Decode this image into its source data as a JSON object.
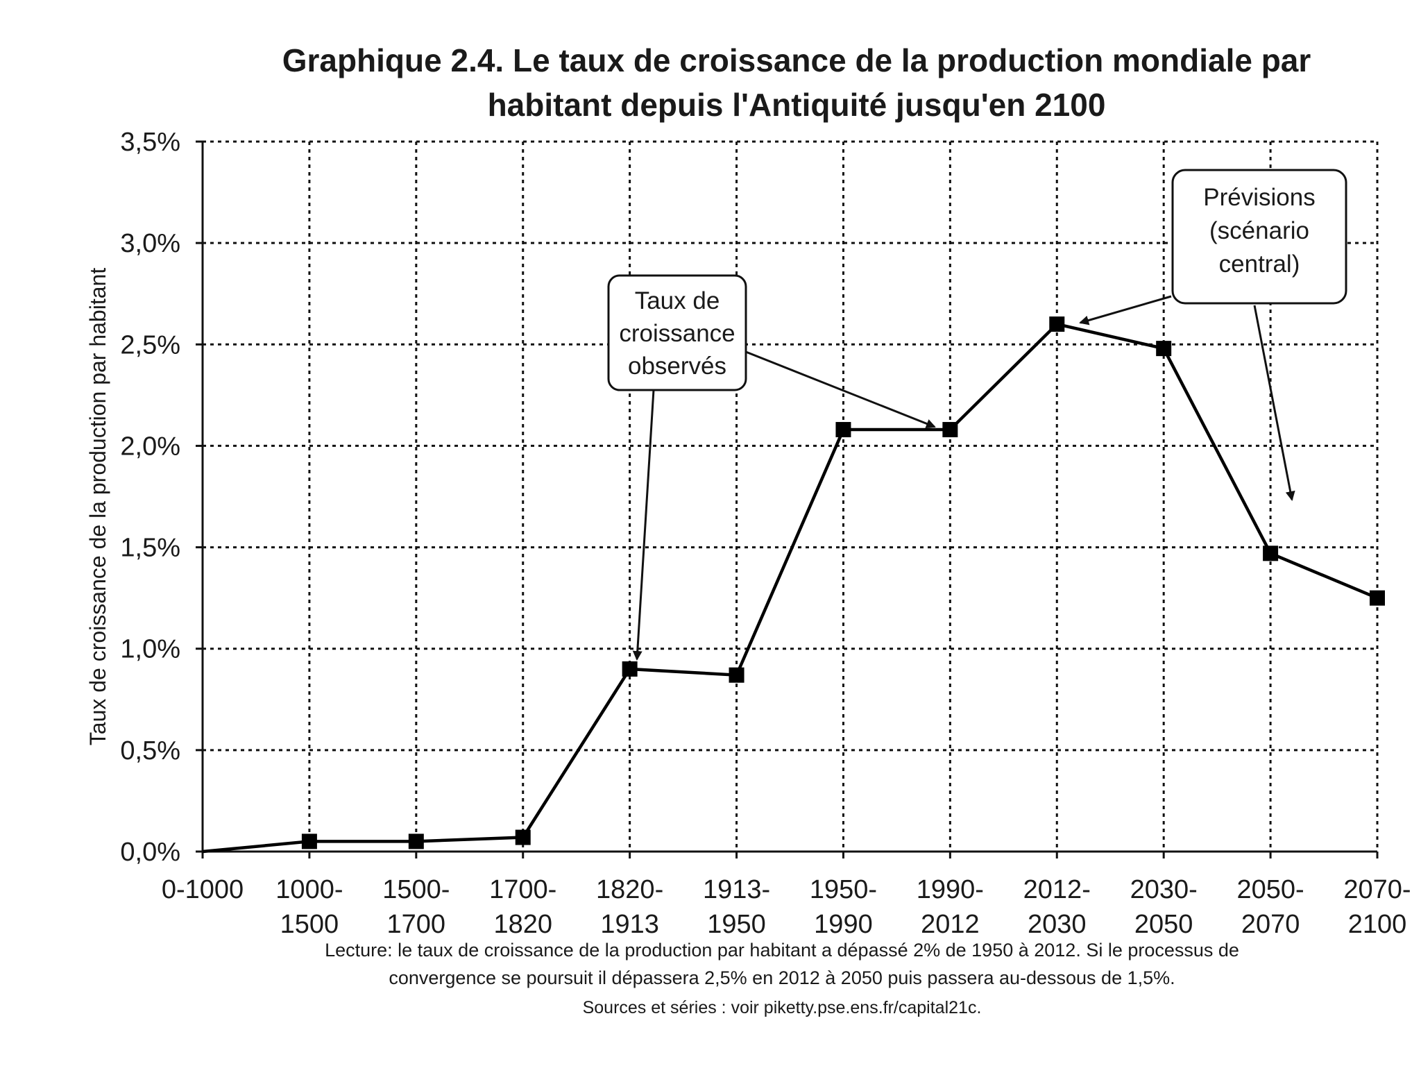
{
  "chart_data": {
    "type": "line",
    "title": [
      "Graphique 2.4. Le taux de croissance de la production mondiale par",
      "habitant depuis l'Antiquité jusqu'en 2100"
    ],
    "ylabel": "Taux de croissance de la production par habitant",
    "xlabel": "",
    "ylim": [
      0,
      3.5
    ],
    "yticks": [
      0,
      0.5,
      1.0,
      1.5,
      2.0,
      2.5,
      3.0,
      3.5
    ],
    "ytick_labels": [
      "0,0%",
      "0,5%",
      "1,0%",
      "1,5%",
      "2,0%",
      "2,5%",
      "3,0%",
      "3,5%"
    ],
    "categories": [
      [
        "0-1000"
      ],
      [
        "1000-",
        "1500"
      ],
      [
        "1500-",
        "1700"
      ],
      [
        "1700-",
        "1820"
      ],
      [
        "1820-",
        "1913"
      ],
      [
        "1913-",
        "1950"
      ],
      [
        "1950-",
        "1990"
      ],
      [
        "1990-",
        "2012"
      ],
      [
        "2012-",
        "2030"
      ],
      [
        "2030-",
        "2050"
      ],
      [
        "2050-",
        "2070"
      ],
      [
        "2070-",
        "2100"
      ]
    ],
    "series": [
      {
        "name": "Taux de croissance de la production mondiale par habitant",
        "values": [
          0.0,
          0.05,
          0.05,
          0.07,
          0.9,
          0.87,
          2.08,
          2.08,
          2.6,
          2.48,
          1.47,
          1.25
        ]
      }
    ],
    "grid": true,
    "annotations": [
      {
        "id": "observed",
        "lines": [
          "Taux de",
          "croissance",
          "observés"
        ]
      },
      {
        "id": "forecast",
        "lines": [
          "Prévisions",
          "(scénario",
          "central)"
        ]
      }
    ],
    "note": [
      "Lecture: le taux de croissance de la production par habitant a dépassé 2% de 1950 à 2012. Si le processus de",
      "convergence se poursuit il dépassera 2,5% en 2012 à 2050 puis passera au-dessous de 1,5%."
    ],
    "source": "Sources et séries : voir piketty.pse.ens.fr/capital21c."
  }
}
